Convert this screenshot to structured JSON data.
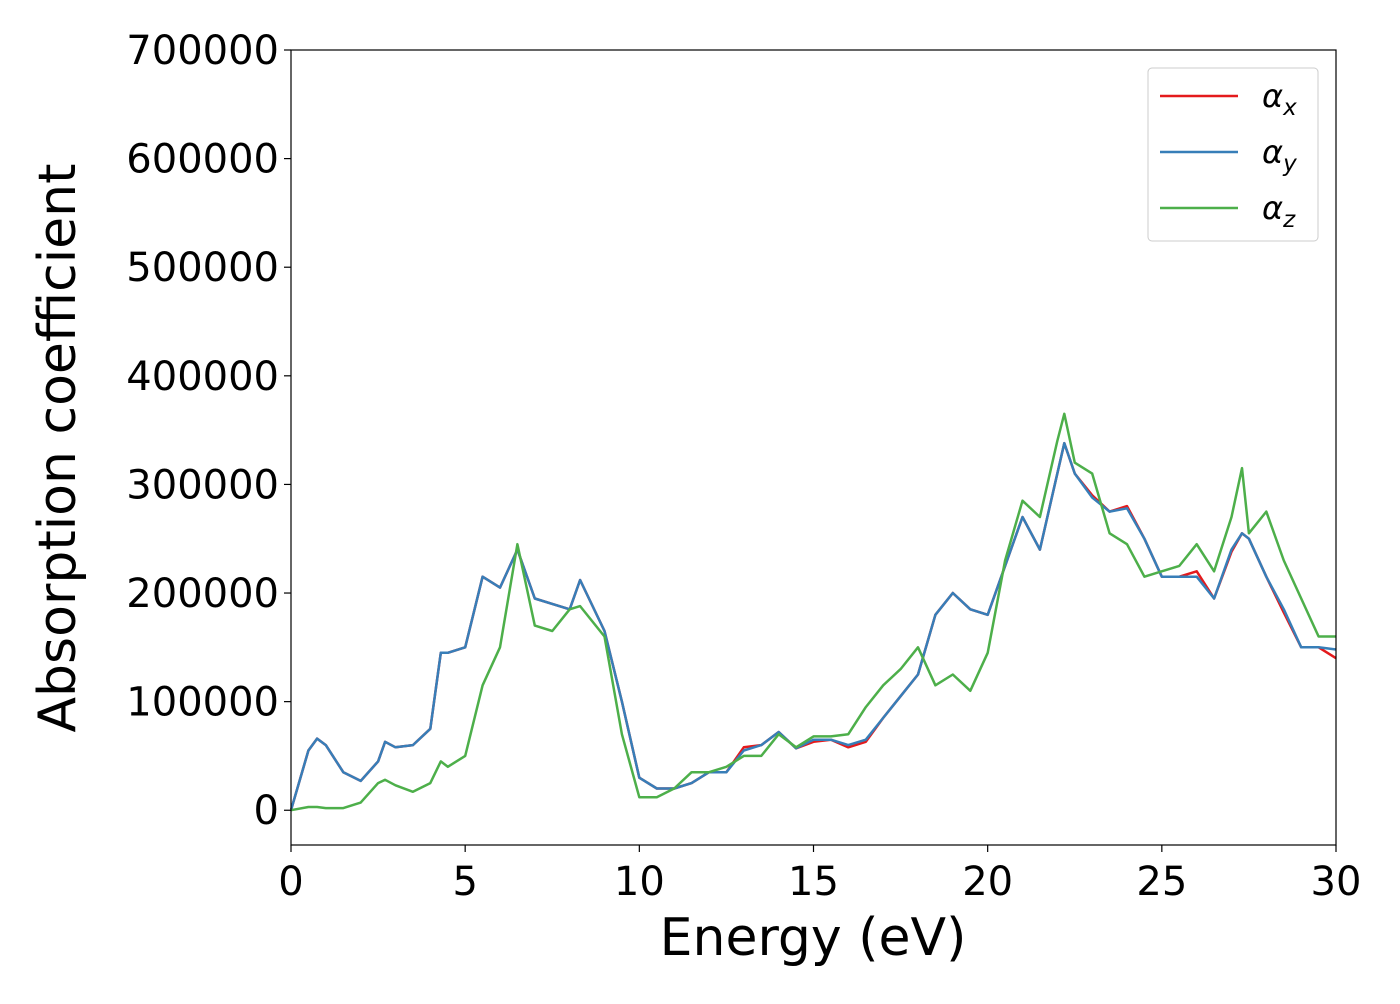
{
  "chart_data": {
    "type": "line",
    "xlabel": "Energy (eV)",
    "ylabel": "Absorption coefficient",
    "x": [
      0,
      0.5,
      0.75,
      1,
      1.5,
      2,
      2.5,
      2.7,
      3,
      3.5,
      4,
      4.3,
      4.5,
      5,
      5.5,
      6,
      6.5,
      7,
      7.5,
      8,
      8.3,
      9,
      9.5,
      10,
      10.5,
      11,
      11.5,
      12,
      12.5,
      13,
      13.5,
      14,
      14.5,
      15,
      15.5,
      16,
      16.5,
      17,
      17.5,
      18,
      18.5,
      19,
      19.5,
      20,
      20.5,
      21,
      21.5,
      22,
      22.2,
      22.5,
      23,
      23.5,
      24,
      24.5,
      25,
      25.5,
      26,
      26.5,
      27,
      27.3,
      27.5,
      28,
      28.5,
      29,
      29.5,
      30
    ],
    "series": [
      {
        "name": "αx",
        "color": "#e41a1c",
        "values": [
          0,
          55000,
          66000,
          60000,
          35000,
          27000,
          45000,
          63000,
          58000,
          60000,
          75000,
          145000,
          145000,
          150000,
          215000,
          205000,
          240000,
          195000,
          190000,
          185000,
          212000,
          165000,
          100000,
          30000,
          20000,
          20000,
          25000,
          35000,
          35000,
          58000,
          60000,
          72000,
          57000,
          63000,
          65000,
          58000,
          63000,
          85000,
          105000,
          125000,
          180000,
          200000,
          185000,
          180000,
          225000,
          270000,
          240000,
          310000,
          338000,
          310000,
          290000,
          275000,
          280000,
          250000,
          215000,
          215000,
          220000,
          195000,
          238000,
          255000,
          250000,
          215000,
          182000,
          150000,
          150000,
          140000
        ]
      },
      {
        "name": "αy",
        "color": "#377eb8",
        "values": [
          0,
          55000,
          66000,
          60000,
          35000,
          27000,
          45000,
          63000,
          58000,
          60000,
          75000,
          145000,
          145000,
          150000,
          215000,
          205000,
          240000,
          195000,
          190000,
          185000,
          212000,
          165000,
          100000,
          30000,
          20000,
          20000,
          25000,
          35000,
          35000,
          55000,
          60000,
          72000,
          57000,
          65000,
          65000,
          60000,
          65000,
          85000,
          105000,
          125000,
          180000,
          200000,
          185000,
          180000,
          225000,
          270000,
          240000,
          310000,
          338000,
          310000,
          288000,
          275000,
          278000,
          250000,
          215000,
          215000,
          215000,
          195000,
          240000,
          255000,
          250000,
          215000,
          185000,
          150000,
          150000,
          148000
        ]
      },
      {
        "name": "αz",
        "color": "#4daf4a",
        "values": [
          0,
          3000,
          3000,
          2000,
          2000,
          7000,
          25000,
          28000,
          23000,
          17000,
          25000,
          45000,
          40000,
          50000,
          115000,
          150000,
          245000,
          170000,
          165000,
          185000,
          188000,
          160000,
          70000,
          12000,
          12000,
          20000,
          35000,
          35000,
          40000,
          50000,
          50000,
          70000,
          58000,
          68000,
          68000,
          70000,
          95000,
          115000,
          130000,
          150000,
          115000,
          125000,
          110000,
          145000,
          230000,
          285000,
          270000,
          340000,
          365000,
          320000,
          310000,
          255000,
          245000,
          215000,
          220000,
          225000,
          245000,
          220000,
          270000,
          315000,
          255000,
          275000,
          230000,
          195000,
          160000,
          160000
        ]
      }
    ],
    "xlim": [
      0,
      30
    ],
    "xticks": [
      0,
      5,
      10,
      15,
      20,
      25,
      30
    ],
    "ylim": [
      -32000,
      700000
    ],
    "yticks": [
      0,
      100000,
      200000,
      300000,
      400000,
      500000,
      600000,
      700000
    ],
    "legend": "upper right"
  }
}
